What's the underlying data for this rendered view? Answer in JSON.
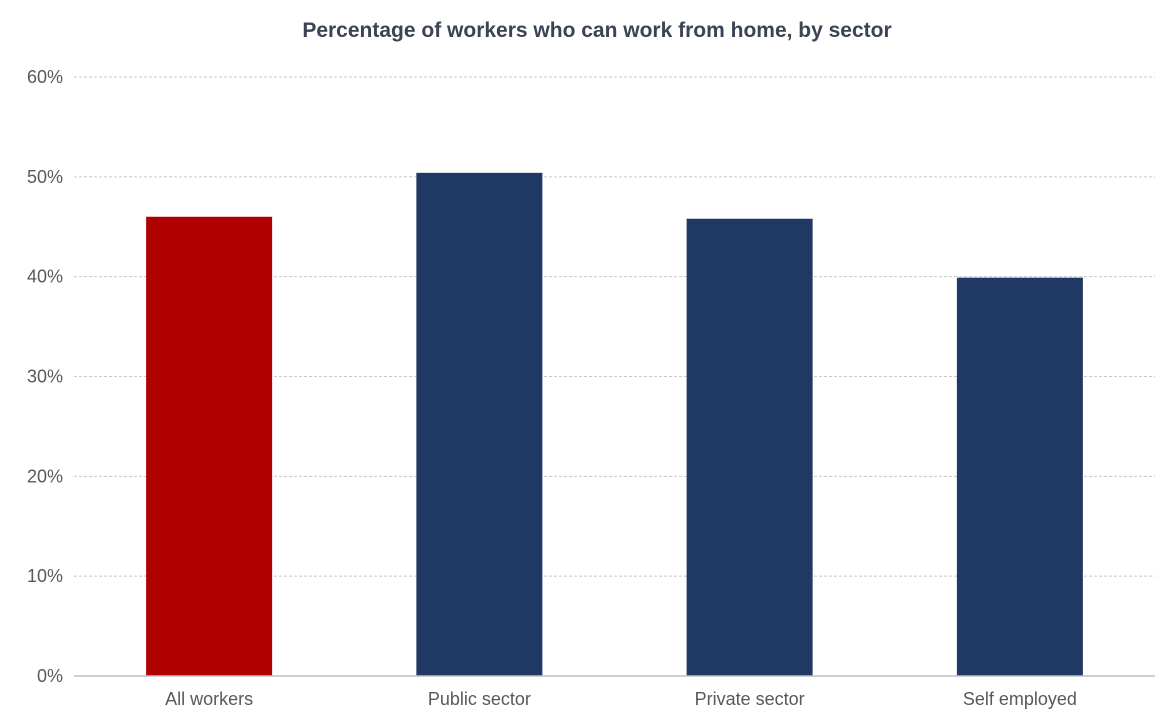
{
  "chart_data": {
    "type": "bar",
    "title": "Percentage of workers who can work from home, by sector",
    "categories": [
      "All workers",
      "Public sector",
      "Private sector",
      "Self employed"
    ],
    "values": [
      46,
      50.4,
      45.8,
      39.9
    ],
    "unit": "%",
    "ylim": [
      0,
      60
    ],
    "yticks": [
      0,
      10,
      20,
      30,
      40,
      50,
      60
    ],
    "ytick_labels": [
      "0%",
      "10%",
      "20%",
      "30%",
      "40%",
      "50%",
      "60%"
    ],
    "xlabel": "",
    "ylabel": "",
    "grid": true,
    "legend": "none",
    "colors": [
      "#b00000",
      "#203864",
      "#203864",
      "#203864"
    ]
  }
}
